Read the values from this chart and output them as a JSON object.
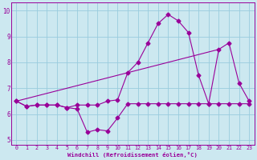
{
  "title": "",
  "xlabel": "Windchill (Refroidissement éolien,°C)",
  "ylabel": "",
  "bg_color": "#cce8f0",
  "line_color": "#990099",
  "grid_color": "#99ccdd",
  "xlim": [
    -0.5,
    23.5
  ],
  "ylim": [
    4.8,
    10.3
  ],
  "yticks": [
    5,
    6,
    7,
    8,
    9,
    10
  ],
  "xticks": [
    0,
    1,
    2,
    3,
    4,
    5,
    6,
    7,
    8,
    9,
    10,
    11,
    12,
    13,
    14,
    15,
    16,
    17,
    18,
    19,
    20,
    21,
    22,
    23
  ],
  "line1_x": [
    0,
    1,
    2,
    3,
    4,
    5,
    6,
    7,
    8,
    9,
    10,
    11,
    12,
    13,
    14,
    15,
    16,
    17,
    18,
    19,
    20,
    21,
    22,
    23
  ],
  "line1_y": [
    6.5,
    6.3,
    6.35,
    6.35,
    6.35,
    6.25,
    6.2,
    5.3,
    5.4,
    5.35,
    5.85,
    6.4,
    6.4,
    6.4,
    6.4,
    6.4,
    6.4,
    6.4,
    6.4,
    6.4,
    6.4,
    6.4,
    6.4,
    6.4
  ],
  "line2_x": [
    0,
    1,
    2,
    3,
    4,
    5,
    6,
    7,
    8,
    9,
    10,
    11,
    12,
    13,
    14,
    15,
    16,
    17,
    18,
    19,
    20,
    21,
    22,
    23
  ],
  "line2_y": [
    6.5,
    6.3,
    6.35,
    6.35,
    6.35,
    6.25,
    6.35,
    6.35,
    6.35,
    6.5,
    6.55,
    7.6,
    8.0,
    8.75,
    9.5,
    9.85,
    9.6,
    9.15,
    7.5,
    6.4,
    8.5,
    8.75,
    7.2,
    6.5
  ],
  "line3_x": [
    0,
    20
  ],
  "line3_y": [
    6.5,
    8.5
  ]
}
